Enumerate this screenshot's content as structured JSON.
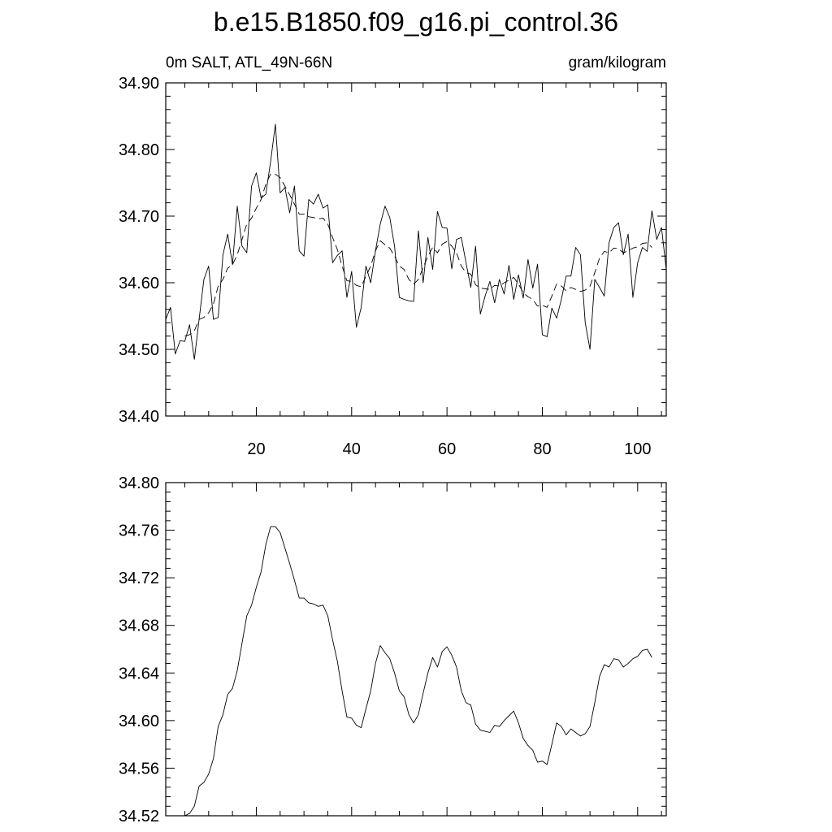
{
  "page_title": "b.e15.B1850.f09_g16.pi_control.36",
  "chart_data": [
    {
      "type": "line",
      "left_label": "0m SALT, ATL_49N-66N",
      "right_label": "gram/kilogram",
      "xlim": [
        1,
        106
      ],
      "ylim": [
        34.4,
        34.9
      ],
      "xticks": [
        20,
        40,
        60,
        80,
        100
      ],
      "xtick_labels": [
        "20",
        "40",
        "60",
        "80",
        "100"
      ],
      "yticks": [
        34.4,
        34.5,
        34.6,
        34.7,
        34.8,
        34.9
      ],
      "ytick_labels": [
        "34.40",
        "34.50",
        "34.60",
        "34.70",
        "34.80",
        "34.90"
      ],
      "series": [
        {
          "style": "solid",
          "x_start": 1,
          "values": [
            34.545,
            34.563,
            34.493,
            34.513,
            34.512,
            34.537,
            34.485,
            34.545,
            34.605,
            34.625,
            34.545,
            34.548,
            34.642,
            34.673,
            34.627,
            34.715,
            34.655,
            34.645,
            34.745,
            34.765,
            34.727,
            34.733,
            34.782,
            34.838,
            34.735,
            34.743,
            34.705,
            34.745,
            34.648,
            34.64,
            34.725,
            34.718,
            34.733,
            34.712,
            34.717,
            34.63,
            34.641,
            34.648,
            34.578,
            34.617,
            34.533,
            34.563,
            34.625,
            34.6,
            34.648,
            34.688,
            34.715,
            34.698,
            34.655,
            34.578,
            34.575,
            34.573,
            34.572,
            34.678,
            34.6,
            34.668,
            34.62,
            34.707,
            34.683,
            34.682,
            34.621,
            34.665,
            34.668,
            34.63,
            34.593,
            34.655,
            34.553,
            34.58,
            34.602,
            34.57,
            34.605,
            34.583,
            34.626,
            34.575,
            34.612,
            34.577,
            34.635,
            34.592,
            34.628,
            34.522,
            34.519,
            34.562,
            34.547,
            34.575,
            34.61,
            34.61,
            34.653,
            34.642,
            34.54,
            34.5,
            34.605,
            34.593,
            34.58,
            34.66,
            34.683,
            34.69,
            34.642,
            34.673,
            34.578,
            34.63,
            34.653,
            34.647,
            34.708,
            34.665,
            34.683,
            34.62,
            34.638,
            34.605
          ]
        },
        {
          "style": "dashed",
          "x_start": 5,
          "values": [
            34.52,
            34.522,
            34.528,
            34.545,
            34.548,
            34.555,
            34.568,
            34.595,
            34.605,
            34.622,
            34.627,
            34.642,
            34.665,
            34.688,
            34.697,
            34.712,
            34.725,
            34.748,
            34.763,
            34.763,
            34.758,
            34.745,
            34.732,
            34.718,
            34.703,
            34.703,
            34.699,
            34.698,
            34.696,
            34.697,
            34.688,
            34.668,
            34.65,
            34.625,
            34.603,
            34.602,
            34.596,
            34.594,
            34.61,
            34.625,
            34.648,
            34.663,
            34.657,
            34.652,
            34.64,
            34.625,
            34.62,
            34.605,
            34.598,
            34.605,
            34.623,
            34.64,
            34.653,
            34.645,
            34.658,
            34.662,
            34.655,
            34.645,
            34.625,
            34.615,
            34.613,
            34.597,
            34.592,
            34.591,
            34.59,
            34.596,
            34.595,
            34.6,
            34.604,
            34.608,
            34.598,
            34.585,
            34.579,
            34.575,
            34.565,
            34.566,
            34.563,
            34.58,
            34.598,
            34.595,
            34.588,
            34.593,
            34.59,
            34.587,
            34.589,
            34.595,
            34.615,
            34.637,
            34.647,
            34.645,
            34.652,
            34.651,
            34.645,
            34.648,
            34.652,
            34.654,
            34.659,
            34.66,
            34.653
          ]
        }
      ]
    },
    {
      "type": "line",
      "xlim": [
        1,
        106
      ],
      "ylim": [
        34.52,
        34.8
      ],
      "xticks": [
        20,
        40,
        60,
        80,
        100
      ],
      "yticks": [
        34.52,
        34.56,
        34.6,
        34.64,
        34.68,
        34.72,
        34.76,
        34.8
      ],
      "ytick_labels": [
        "34.52",
        "34.56",
        "34.60",
        "34.64",
        "34.68",
        "34.72",
        "34.76",
        "34.80"
      ],
      "series": [
        {
          "style": "solid",
          "x_start": 5,
          "values": [
            34.52,
            34.522,
            34.528,
            34.545,
            34.548,
            34.555,
            34.568,
            34.595,
            34.605,
            34.622,
            34.627,
            34.642,
            34.665,
            34.688,
            34.697,
            34.712,
            34.725,
            34.748,
            34.763,
            34.763,
            34.758,
            34.745,
            34.732,
            34.718,
            34.703,
            34.703,
            34.699,
            34.698,
            34.696,
            34.697,
            34.688,
            34.668,
            34.65,
            34.625,
            34.603,
            34.602,
            34.596,
            34.594,
            34.61,
            34.625,
            34.648,
            34.663,
            34.657,
            34.652,
            34.64,
            34.625,
            34.62,
            34.605,
            34.598,
            34.605,
            34.623,
            34.64,
            34.653,
            34.645,
            34.658,
            34.662,
            34.655,
            34.645,
            34.625,
            34.615,
            34.613,
            34.597,
            34.592,
            34.591,
            34.59,
            34.596,
            34.595,
            34.6,
            34.604,
            34.608,
            34.598,
            34.585,
            34.579,
            34.575,
            34.565,
            34.566,
            34.563,
            34.58,
            34.598,
            34.595,
            34.588,
            34.593,
            34.59,
            34.587,
            34.589,
            34.595,
            34.615,
            34.637,
            34.647,
            34.645,
            34.652,
            34.651,
            34.645,
            34.648,
            34.652,
            34.654,
            34.659,
            34.66,
            34.653
          ]
        }
      ]
    }
  ]
}
